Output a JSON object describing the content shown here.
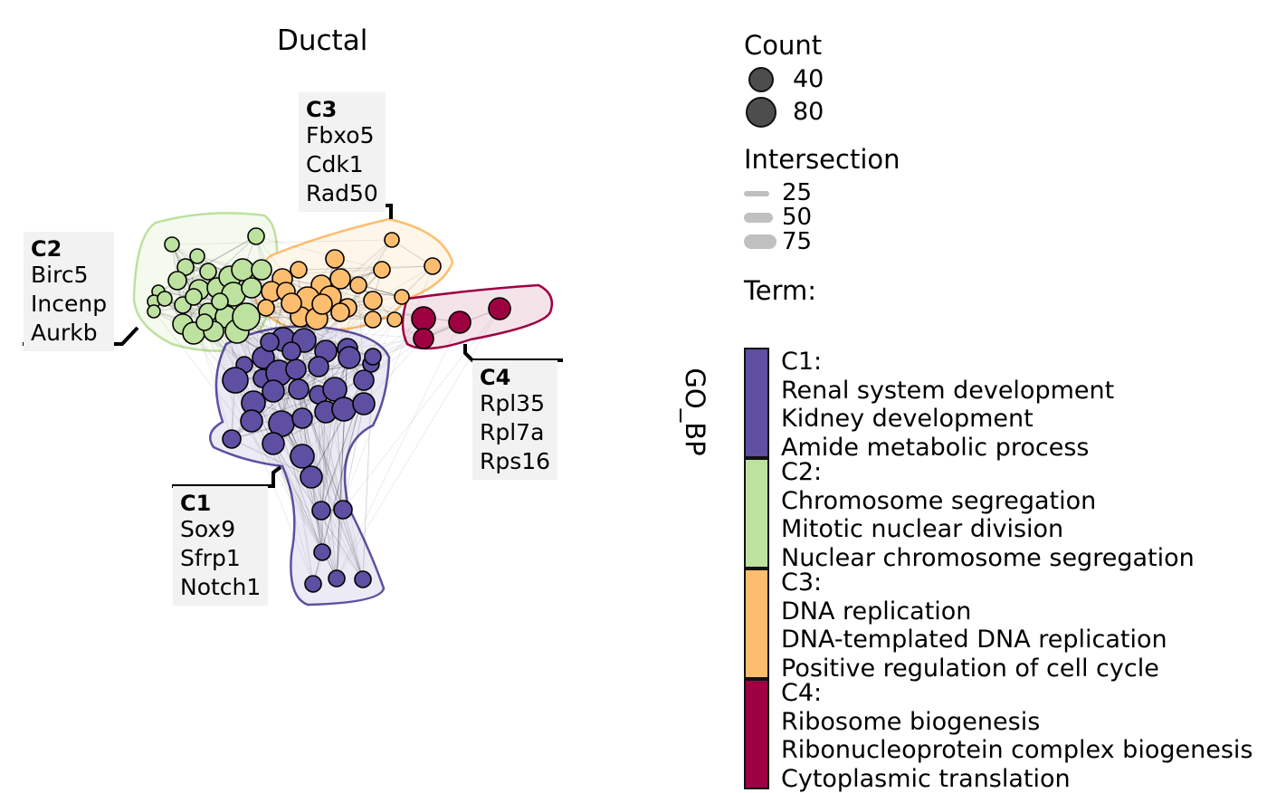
{
  "title": "Ductal",
  "side_label": "GO_BP",
  "clusters": [
    {
      "id": "C1",
      "genes": [
        "Sox9",
        "Sfrp1",
        "Notch1"
      ],
      "color": "#5E4FA2",
      "fill": "#ECEAF5",
      "hull": "#5E4FA2"
    },
    {
      "id": "C2",
      "genes": [
        "Birc5",
        "Incenp",
        "Aurkb"
      ],
      "color": "#BDE19F",
      "fill": "#F4FAEE",
      "hull": "#BDE19F"
    },
    {
      "id": "C3",
      "genes": [
        "Fbxo5",
        "Cdk1",
        "Rad50"
      ],
      "color": "#FDBD6E",
      "fill": "#FFF6EA",
      "hull": "#FDBD6E"
    },
    {
      "id": "C4",
      "genes": [
        "Rpl35",
        "Rpl7a",
        "Rps16"
      ],
      "color": "#9E0142",
      "fill": "#F5E3EA",
      "hull": "#9E0142"
    }
  ],
  "legend": {
    "count_title": "Count",
    "count_values": [
      "40",
      "80"
    ],
    "intersection_title": "Intersection",
    "intersection_values": [
      "25",
      "50",
      "75"
    ],
    "term_title": "Term:",
    "terms": [
      {
        "id": "C1:",
        "color": "#5E4FA2",
        "lines": [
          "Renal system development",
          "Kidney development",
          "Amide metabolic process"
        ]
      },
      {
        "id": "C2:",
        "color": "#BDE19F",
        "lines": [
          "Chromosome segregation",
          "Mitotic nuclear division",
          "Nuclear chromosome segregation"
        ]
      },
      {
        "id": "C3:",
        "color": "#FDBD6E",
        "lines": [
          "DNA replication",
          "DNA-templated DNA replication",
          "Positive regulation of cell cycle"
        ]
      },
      {
        "id": "C4:",
        "color": "#9E0142",
        "lines": [
          "Ribosome biogenesis",
          "Ribonucleoprotein complex biogenesis",
          "Cytoplasmic translation"
        ]
      }
    ]
  }
}
